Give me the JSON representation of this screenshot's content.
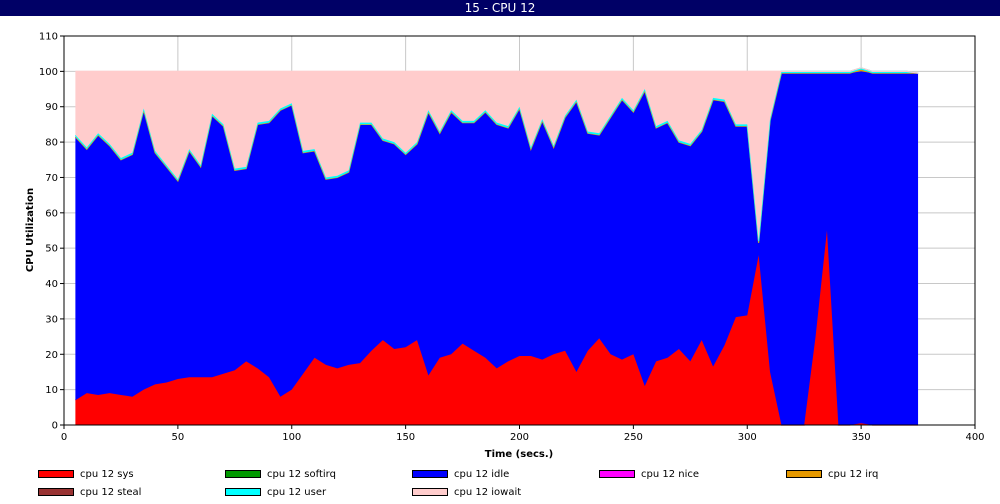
{
  "window": {
    "title": "15 - CPU 12"
  },
  "chart_data": {
    "type": "area",
    "stacked": true,
    "title": "",
    "xlabel": "Time (secs.)",
    "ylabel": "CPU Utilization",
    "xlim": [
      0,
      400
    ],
    "ylim": [
      0,
      110
    ],
    "xticks": [
      0,
      50,
      100,
      150,
      200,
      250,
      300,
      350,
      400
    ],
    "yticks": [
      0,
      10,
      20,
      30,
      40,
      50,
      60,
      70,
      80,
      90,
      100,
      110
    ],
    "grid": true,
    "legend_position": "bottom",
    "x": [
      5,
      10,
      15,
      20,
      25,
      30,
      35,
      40,
      45,
      50,
      55,
      60,
      65,
      70,
      75,
      80,
      85,
      90,
      95,
      100,
      105,
      110,
      115,
      120,
      125,
      130,
      135,
      140,
      145,
      150,
      155,
      160,
      165,
      170,
      175,
      180,
      185,
      190,
      195,
      200,
      205,
      210,
      215,
      220,
      225,
      230,
      235,
      240,
      245,
      250,
      255,
      260,
      265,
      270,
      275,
      280,
      285,
      290,
      295,
      300,
      305,
      310,
      315,
      320,
      325,
      330,
      335,
      340,
      345,
      350,
      355,
      360,
      365,
      370,
      375
    ],
    "series": [
      {
        "name": "cpu 12 sys",
        "color": "#ff0000",
        "values": [
          7,
          9,
          8.5,
          9,
          8.5,
          8,
          10,
          11.5,
          12,
          13,
          13.5,
          13.5,
          13.5,
          14.5,
          15.5,
          18,
          16,
          13.5,
          8,
          10,
          14.5,
          19,
          17,
          16,
          17,
          17.5,
          21,
          24,
          21.5,
          22,
          24,
          14,
          19,
          20,
          23,
          21,
          19,
          16,
          18,
          19.5,
          19.5,
          18.5,
          20,
          21,
          15,
          21,
          24.5,
          20,
          18.5,
          20,
          11,
          18,
          19,
          21.5,
          18,
          24,
          16.5,
          22.5,
          30.5,
          31,
          48,
          15,
          0,
          0,
          0,
          25,
          55,
          0,
          0,
          0.5,
          0,
          0,
          0,
          0,
          0
        ]
      },
      {
        "name": "cpu 12 softirq",
        "color": "#009900",
        "values": [
          0,
          0,
          0,
          0,
          0,
          0,
          0,
          0,
          0,
          0,
          0,
          0,
          0,
          0,
          0,
          0,
          0,
          0,
          0,
          0,
          0,
          0,
          0,
          0,
          0,
          0,
          0,
          0,
          0,
          0,
          0,
          0,
          0,
          0,
          0,
          0,
          0,
          0,
          0,
          0,
          0,
          0,
          0,
          0,
          0,
          0,
          0,
          0,
          0,
          0,
          0,
          0,
          0,
          0,
          0,
          0,
          0,
          0,
          0,
          0,
          0,
          0,
          0,
          0,
          0,
          0,
          0,
          0,
          0,
          0,
          0,
          0,
          0,
          0,
          0
        ]
      },
      {
        "name": "cpu 12 idle",
        "color": "#0000ff",
        "values": [
          74.5,
          69,
          73.5,
          70,
          66.5,
          68.5,
          79,
          65.5,
          61,
          56,
          64,
          59.5,
          74,
          70,
          56.5,
          54.5,
          69,
          72,
          81,
          80.5,
          62.5,
          58.5,
          52.5,
          54,
          54.5,
          67.5,
          64,
          56.5,
          58,
          54.5,
          55.5,
          74.5,
          63.5,
          68.5,
          62.5,
          64.5,
          69.5,
          69,
          66,
          70,
          58.5,
          67.5,
          58.5,
          66,
          76.5,
          61.5,
          57.5,
          67,
          73.5,
          68.5,
          83.5,
          66,
          66.5,
          58.5,
          61,
          59,
          75.5,
          69,
          54,
          53.5,
          3.5,
          71,
          99.5,
          99.5,
          99.5,
          74.5,
          44.5,
          99.5,
          99.5,
          99.5,
          99.5,
          99.5,
          99.5,
          99.5,
          99.5
        ]
      },
      {
        "name": "cpu 12 nice",
        "color": "#ff00ff",
        "values": [
          0,
          0,
          0,
          0,
          0,
          0,
          0,
          0,
          0,
          0,
          0,
          0,
          0,
          0,
          0,
          0,
          0,
          0,
          0,
          0,
          0,
          0,
          0,
          0,
          0,
          0,
          0,
          0,
          0,
          0,
          0,
          0,
          0,
          0,
          0,
          0,
          0,
          0,
          0,
          0,
          0,
          0,
          0,
          0,
          0,
          0,
          0,
          0,
          0,
          0,
          0,
          0,
          0,
          0,
          0,
          0,
          0,
          0,
          0,
          0,
          0,
          0,
          0,
          0,
          0,
          0,
          0,
          0,
          0,
          0,
          0,
          0,
          0,
          0,
          0
        ]
      },
      {
        "name": "cpu 12 irq",
        "color": "#e69900",
        "values": [
          0,
          0,
          0,
          0,
          0,
          0,
          0,
          0,
          0,
          0,
          0,
          0,
          0,
          0,
          0,
          0,
          0,
          0,
          0,
          0,
          0,
          0,
          0,
          0,
          0,
          0,
          0,
          0,
          0,
          0,
          0,
          0,
          0,
          0,
          0,
          0,
          0,
          0,
          0,
          0,
          0,
          0,
          0,
          0,
          0,
          0,
          0,
          0,
          0,
          0,
          0,
          0,
          0,
          0,
          0,
          0,
          0,
          0,
          0,
          0,
          0,
          0,
          0,
          0,
          0,
          0,
          0,
          0,
          0,
          0.5,
          0,
          0,
          0,
          0,
          0
        ]
      },
      {
        "name": "cpu 12 steal",
        "color": "#993333",
        "values": [
          0,
          0,
          0,
          0,
          0,
          0,
          0,
          0,
          0,
          0,
          0,
          0,
          0,
          0,
          0,
          0,
          0,
          0,
          0,
          0,
          0,
          0,
          0,
          0,
          0,
          0,
          0,
          0,
          0,
          0,
          0,
          0,
          0,
          0,
          0,
          0,
          0,
          0,
          0,
          0,
          0,
          0,
          0,
          0,
          0,
          0,
          0,
          0,
          0,
          0,
          0,
          0,
          0,
          0,
          0,
          0,
          0,
          0,
          0,
          0,
          0,
          0,
          0,
          0,
          0,
          0,
          0,
          0,
          0,
          0,
          0,
          0,
          0,
          0,
          0
        ]
      },
      {
        "name": "cpu 12 user",
        "color": "#00ffff",
        "values": [
          0.5,
          0.5,
          0.5,
          0.5,
          0.5,
          0.5,
          0.5,
          0.5,
          0.5,
          0.5,
          0.5,
          0.5,
          0.5,
          0.5,
          0.5,
          0.5,
          0.5,
          0.5,
          0.5,
          0.5,
          0.5,
          0.5,
          0.5,
          0.5,
          0.5,
          0.5,
          0.5,
          0.5,
          0.5,
          0.5,
          0.5,
          0.5,
          0.5,
          0.5,
          0.5,
          0.5,
          0.5,
          0.5,
          0.5,
          0.5,
          0.5,
          0.5,
          0.5,
          0.5,
          0.5,
          0.5,
          0.5,
          0.5,
          0.5,
          0.5,
          0.5,
          0.5,
          0.5,
          0.5,
          0.5,
          0.5,
          0.5,
          0.5,
          0.5,
          0.5,
          0.5,
          0.5,
          0.5,
          0.5,
          0.5,
          0.5,
          0.5,
          0.5,
          0.5,
          0.5,
          0.5,
          0.5,
          0.5,
          0.5,
          0
        ]
      },
      {
        "name": "cpu 12 iowait",
        "color": "#ffcccc",
        "values": [
          18,
          21.5,
          17.5,
          20.5,
          24.5,
          23,
          10.5,
          22.5,
          26.5,
          30.5,
          22,
          26.5,
          12,
          15,
          27.5,
          27,
          14.5,
          14,
          10.5,
          9,
          22.5,
          22,
          30,
          29.5,
          28,
          14.5,
          14.5,
          19,
          20,
          23,
          20,
          11,
          17,
          11,
          14,
          14,
          11,
          14.5,
          15.5,
          10,
          21.5,
          13.5,
          21,
          12.5,
          8,
          17,
          17.5,
          12.5,
          7.5,
          11,
          5,
          15.5,
          14,
          19.5,
          20.5,
          16.5,
          7.5,
          8,
          15,
          15,
          48,
          13.5,
          0,
          0,
          0,
          0,
          0,
          0,
          0,
          0,
          0,
          0,
          0,
          0,
          0
        ]
      }
    ]
  }
}
